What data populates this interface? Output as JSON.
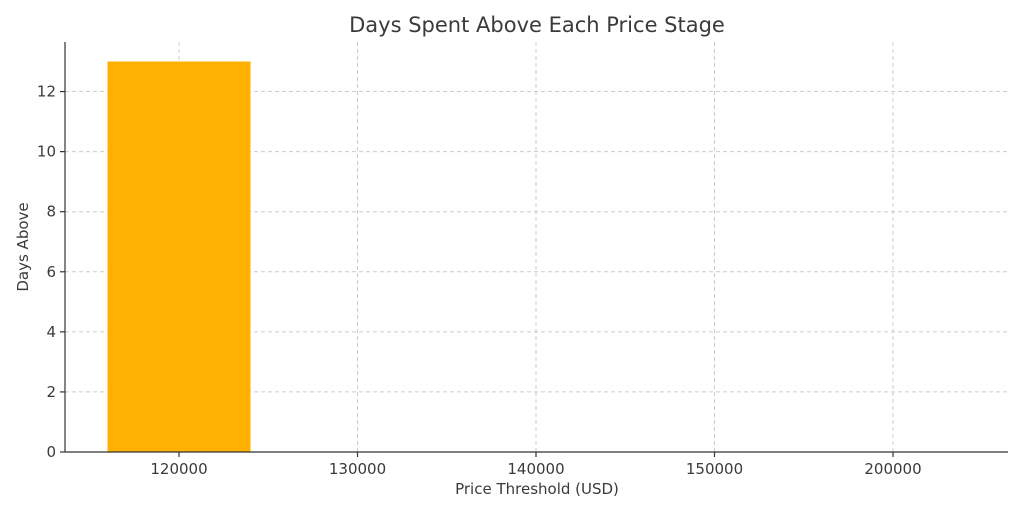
{
  "chart_data": {
    "type": "bar",
    "title": "Days Spent Above Each Price Stage",
    "xlabel": "Price Threshold (USD)",
    "ylabel": "Days Above",
    "categories": [
      "120000",
      "130000",
      "140000",
      "150000",
      "200000"
    ],
    "values": [
      13,
      0,
      0,
      0,
      0
    ],
    "ylim": [
      0,
      13.65
    ],
    "yticks": [
      0,
      2,
      4,
      6,
      8,
      10,
      12
    ],
    "grid": true,
    "bar_color": "#FFB000"
  }
}
